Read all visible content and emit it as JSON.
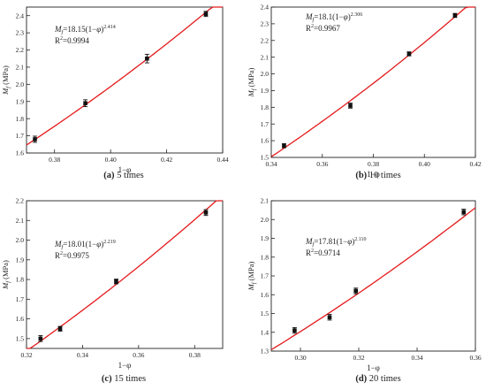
{
  "chart_data": [
    {
      "type": "scatter",
      "caption_letter": "(a)",
      "caption_text": "5 times",
      "xlabel": "1−φ",
      "ylabel": "Mf (MPa)",
      "ylabel_var": "M",
      "ylabel_sub": "f",
      "ylabel_unit": " (MPa)",
      "xlim": [
        0.37,
        0.44
      ],
      "ylim": [
        1.6,
        2.45
      ],
      "xticks": [
        "0.38",
        "0.40",
        "0.42",
        "0.44"
      ],
      "xtick_values": [
        0.38,
        0.4,
        0.42,
        0.44
      ],
      "yticks": [
        "1.6",
        "1.7",
        "1.8",
        "1.9",
        "2.0",
        "2.1",
        "2.2",
        "2.3",
        "2.4"
      ],
      "ytick_values": [
        1.6,
        1.7,
        1.8,
        1.9,
        2.0,
        2.1,
        2.2,
        2.3,
        2.4
      ],
      "points": [
        {
          "x": 0.373,
          "y": 1.68,
          "err": 0.018
        },
        {
          "x": 0.391,
          "y": 1.89,
          "err": 0.02
        },
        {
          "x": 0.413,
          "y": 2.15,
          "err": 0.025
        },
        {
          "x": 0.434,
          "y": 2.41,
          "err": 0.015
        }
      ],
      "fit": {
        "a": 18.15,
        "b": 2.414,
        "x_from": 0.37,
        "x_to": 0.44
      },
      "equation_coef": "18.15",
      "equation_exp": "2.414",
      "r2_value": "0.9994",
      "point_color": "#111111",
      "line_color": "#e41a1c"
    },
    {
      "type": "scatter",
      "caption_letter": "(b)",
      "caption_text": "10 times",
      "xlabel": "1−φ",
      "ylabel": "Mf (MPa)",
      "ylabel_var": "M",
      "ylabel_sub": "f",
      "ylabel_unit": " (MPa)",
      "xlim": [
        0.34,
        0.42
      ],
      "ylim": [
        1.5,
        2.4
      ],
      "xticks": [
        "0.34",
        "0.36",
        "0.38",
        "0.40",
        "0.42"
      ],
      "xtick_values": [
        0.34,
        0.36,
        0.38,
        0.4,
        0.42
      ],
      "yticks": [
        "1.5",
        "1.6",
        "1.7",
        "1.8",
        "1.9",
        "2.0",
        "2.1",
        "2.2",
        "2.3",
        "2.4"
      ],
      "ytick_values": [
        1.5,
        1.6,
        1.7,
        1.8,
        1.9,
        2.0,
        2.1,
        2.2,
        2.3,
        2.4
      ],
      "points": [
        {
          "x": 0.345,
          "y": 1.57,
          "err": 0.012
        },
        {
          "x": 0.371,
          "y": 1.81,
          "err": 0.015
        },
        {
          "x": 0.394,
          "y": 2.12,
          "err": 0.012
        },
        {
          "x": 0.412,
          "y": 2.35,
          "err": 0.012
        }
      ],
      "fit": {
        "a": 18.1,
        "b": 2.306,
        "x_from": 0.34,
        "x_to": 0.42
      },
      "equation_coef": "18.1",
      "equation_exp": "2.306",
      "r2_value": "0.9967",
      "point_color": "#111111",
      "line_color": "#e41a1c"
    },
    {
      "type": "scatter",
      "caption_letter": "(c)",
      "caption_text": "15 times",
      "xlabel": "1−φ",
      "ylabel": "Mf (MPa)",
      "ylabel_var": "M",
      "ylabel_sub": "f",
      "ylabel_unit": " (MPa)",
      "xlim": [
        0.32,
        0.39
      ],
      "ylim": [
        1.45,
        2.2
      ],
      "xticks": [
        "0.32",
        "0.34",
        "0.36",
        "0.38"
      ],
      "xtick_values": [
        0.32,
        0.34,
        0.36,
        0.38
      ],
      "yticks": [
        "1.5",
        "1.6",
        "1.7",
        "1.8",
        "1.9",
        "2.0",
        "2.1",
        "2.2"
      ],
      "ytick_values": [
        1.5,
        1.6,
        1.7,
        1.8,
        1.9,
        2.0,
        2.1,
        2.2
      ],
      "points": [
        {
          "x": 0.325,
          "y": 1.5,
          "err": 0.015
        },
        {
          "x": 0.332,
          "y": 1.55,
          "err": 0.012
        },
        {
          "x": 0.352,
          "y": 1.79,
          "err": 0.012
        },
        {
          "x": 0.384,
          "y": 2.14,
          "err": 0.015
        }
      ],
      "fit": {
        "a": 18.01,
        "b": 2.219,
        "x_from": 0.32,
        "x_to": 0.39
      },
      "equation_coef": "18.01",
      "equation_exp": "2.219",
      "r2_value": "0.9975",
      "point_color": "#111111",
      "line_color": "#e41a1c"
    },
    {
      "type": "scatter",
      "caption_letter": "(d)",
      "caption_text": "20 times",
      "xlabel": "1−φ",
      "ylabel": "Mf (MPa)",
      "ylabel_var": "M",
      "ylabel_sub": "f",
      "ylabel_unit": " (MPa)",
      "xlim": [
        0.29,
        0.36
      ],
      "ylim": [
        1.3,
        2.1
      ],
      "xticks": [
        "0.30",
        "0.32",
        "0.34",
        "0.36"
      ],
      "xtick_values": [
        0.3,
        0.32,
        0.34,
        0.36
      ],
      "yticks": [
        "1.3",
        "1.4",
        "1.5",
        "1.6",
        "1.7",
        "1.8",
        "1.9",
        "2.0",
        "2.1"
      ],
      "ytick_values": [
        1.3,
        1.4,
        1.5,
        1.6,
        1.7,
        1.8,
        1.9,
        2.0,
        2.1
      ],
      "points": [
        {
          "x": 0.298,
          "y": 1.41,
          "err": 0.015
        },
        {
          "x": 0.31,
          "y": 1.48,
          "err": 0.015
        },
        {
          "x": 0.319,
          "y": 1.62,
          "err": 0.015
        },
        {
          "x": 0.356,
          "y": 2.04,
          "err": 0.015
        }
      ],
      "fit": {
        "a": 17.81,
        "b": 2.11,
        "x_from": 0.29,
        "x_to": 0.36
      },
      "equation_coef": "17.81",
      "equation_exp": "2.110",
      "r2_value": "0.9714",
      "point_color": "#111111",
      "line_color": "#e41a1c"
    }
  ]
}
